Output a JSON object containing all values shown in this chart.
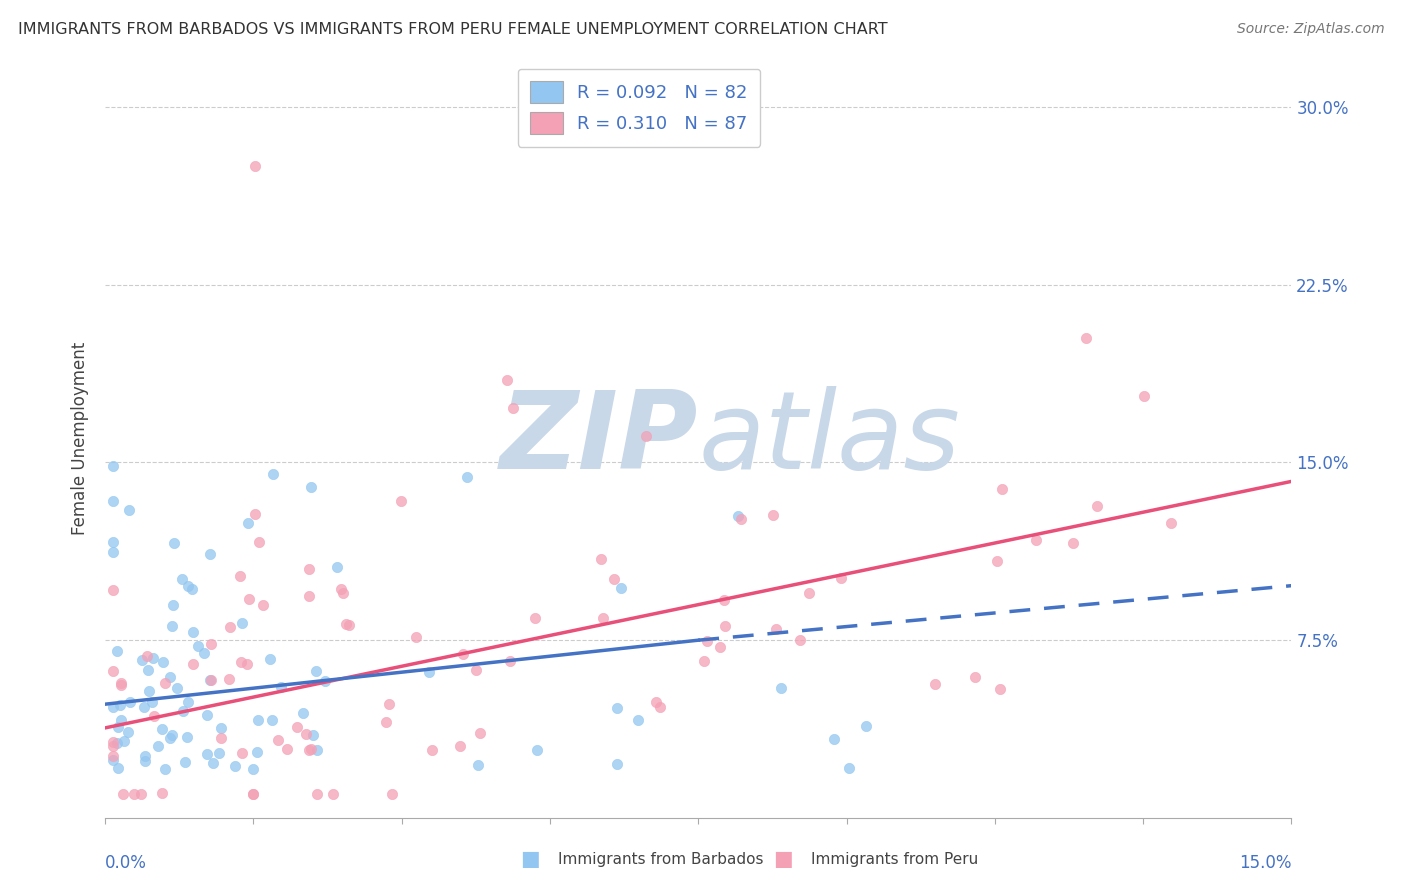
{
  "title": "IMMIGRANTS FROM BARBADOS VS IMMIGRANTS FROM PERU FEMALE UNEMPLOYMENT CORRELATION CHART",
  "source": "Source: ZipAtlas.com",
  "ylabel": "Female Unemployment",
  "right_ytick_labels": [
    "7.5%",
    "15.0%",
    "22.5%",
    "30.0%"
  ],
  "right_ytick_values": [
    0.075,
    0.15,
    0.225,
    0.3
  ],
  "xlim": [
    0.0,
    0.15
  ],
  "ylim": [
    0.0,
    0.32
  ],
  "legend_barbados_R": "0.092",
  "legend_barbados_N": "82",
  "legend_peru_R": "0.310",
  "legend_peru_N": "87",
  "color_barbados": "#93C6F0",
  "color_peru": "#F4A0B5",
  "color_trend_barbados": "#4472C4",
  "color_trend_peru": "#E8507A",
  "watermark_color": "#C8D8E8",
  "background_color": "#FFFFFF",
  "title_fontsize": 11.5,
  "n_barbados": 82,
  "n_peru": 87
}
